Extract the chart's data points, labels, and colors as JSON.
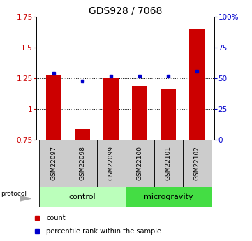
{
  "title": "GDS928 / 7068",
  "samples": [
    "GSM22097",
    "GSM22098",
    "GSM22099",
    "GSM22100",
    "GSM22101",
    "GSM22102"
  ],
  "count_values": [
    1.28,
    0.84,
    1.25,
    1.19,
    1.165,
    1.65
  ],
  "percentile_values": [
    54,
    48,
    52,
    52,
    52,
    56
  ],
  "ylim_left": [
    0.75,
    1.75
  ],
  "ylim_right": [
    0,
    100
  ],
  "yticks_left": [
    0.75,
    1.0,
    1.25,
    1.5,
    1.75
  ],
  "ytick_labels_left": [
    "0.75",
    "1",
    "1.25",
    "1.5",
    "1.75"
  ],
  "yticks_right": [
    0,
    25,
    50,
    75,
    100
  ],
  "ytick_labels_right": [
    "0",
    "25",
    "50",
    "75",
    "100%"
  ],
  "dotted_lines": [
    1.0,
    1.25,
    1.5
  ],
  "bar_color": "#cc0000",
  "percentile_color": "#0000cc",
  "bar_width": 0.55,
  "group_control_color": "#bbffbb",
  "group_micro_color": "#44dd44",
  "protocol_label": "protocol",
  "legend_count_label": "count",
  "legend_percentile_label": "percentile rank within the sample",
  "background_color": "#ffffff",
  "tick_label_color_left": "#cc0000",
  "tick_label_color_right": "#0000cc",
  "sample_box_color": "#cccccc"
}
